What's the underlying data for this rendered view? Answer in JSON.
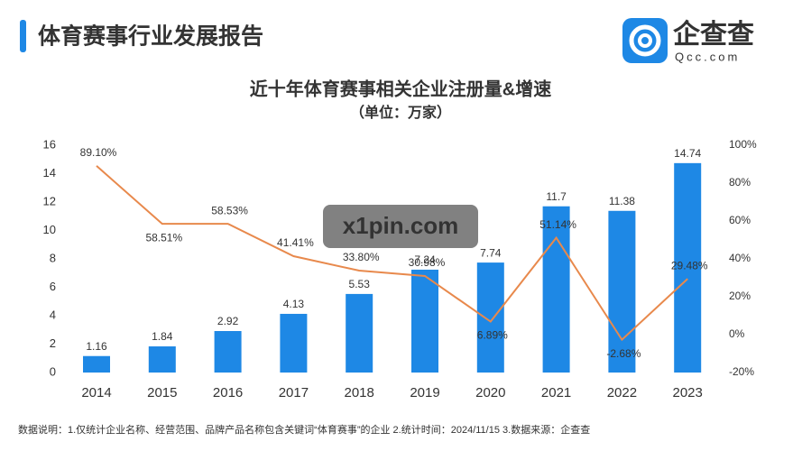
{
  "header": {
    "title": "体育赛事行业发展报告",
    "logo": {
      "name": "企查查",
      "url": "Qcc.com"
    }
  },
  "watermark": "x1pin.com",
  "chart_data": {
    "type": "bar",
    "title": "近十年体育赛事相关企业注册量&增速",
    "subtitle": "（单位：万家）",
    "categories": [
      "2014",
      "2015",
      "2016",
      "2017",
      "2018",
      "2019",
      "2020",
      "2021",
      "2022",
      "2023"
    ],
    "series": [
      {
        "type": "bar",
        "color": "#1e88e5",
        "values": [
          1.16,
          1.84,
          2.92,
          4.13,
          5.53,
          7.24,
          7.74,
          11.7,
          11.38,
          14.74
        ]
      },
      {
        "type": "line",
        "axis": "y2",
        "color": "#e8894c",
        "values": [
          89.1,
          58.51,
          58.53,
          41.41,
          33.8,
          30.98,
          6.89,
          51.14,
          -2.68,
          29.48
        ],
        "value_labels": [
          "89.10%",
          "58.51%",
          "58.53%",
          "41.41%",
          "33.80%",
          "30.98%",
          "6.89%",
          "51.14%",
          "-2.68%",
          "29.48%"
        ]
      }
    ],
    "ylim": [
      0,
      16
    ],
    "yticks": [
      0,
      2,
      4,
      6,
      8,
      10,
      12,
      14,
      16
    ],
    "y2lim": [
      -20,
      100
    ],
    "y2ticks": [
      {
        "value": -20,
        "label": "-20%"
      },
      {
        "value": 0,
        "label": "0%"
      },
      {
        "value": 20,
        "label": "20%"
      },
      {
        "value": 40,
        "label": "40%"
      },
      {
        "value": 60,
        "label": "60%"
      },
      {
        "value": 80,
        "label": "80%"
      },
      {
        "value": 100,
        "label": "100%"
      }
    ]
  },
  "footnote": "数据说明：1.仅统计企业名称、经营范围、品牌产品名称包含关键词“体育赛事”的企业  2.统计时间：2024/11/15  3.数据来源：企查查"
}
